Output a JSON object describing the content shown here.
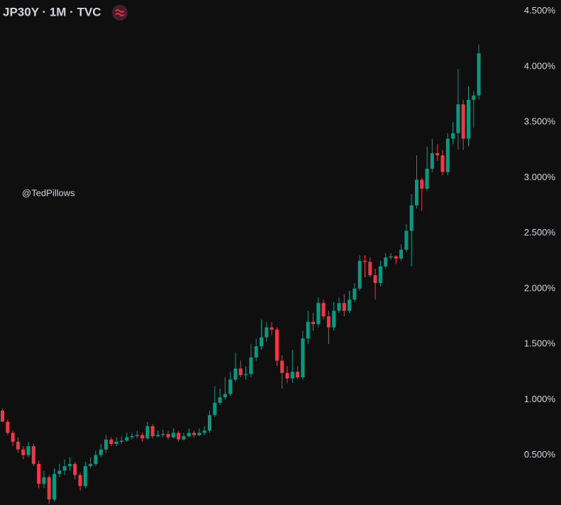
{
  "chart_data": {
    "type": "candlestick",
    "title": "JP30Y · 1M · TVC",
    "annotation": "@TedPillows",
    "up_color": "#089981",
    "down_color": "#f23645",
    "ylim": [
      0.05,
      4.6
    ],
    "yticks": [
      {
        "value": 0.5,
        "label": "0.500%"
      },
      {
        "value": 1.0,
        "label": "1.000%"
      },
      {
        "value": 1.5,
        "label": "1.500%"
      },
      {
        "value": 2.0,
        "label": "2.000%"
      },
      {
        "value": 2.5,
        "label": "2.500%"
      },
      {
        "value": 3.0,
        "label": "3.000%"
      },
      {
        "value": 3.5,
        "label": "3.500%"
      },
      {
        "value": 4.0,
        "label": "4.000%"
      },
      {
        "value": 4.5,
        "label": "4.500%"
      }
    ],
    "open": [
      0.9,
      0.8,
      0.7,
      0.62,
      0.55,
      0.5,
      0.58,
      0.42,
      0.24,
      0.3,
      0.1,
      0.33,
      0.36,
      0.4,
      0.42,
      0.32,
      0.22,
      0.4,
      0.42,
      0.5,
      0.55,
      0.64,
      0.6,
      0.62,
      0.63,
      0.66,
      0.67,
      0.68,
      0.65,
      0.76,
      0.67,
      0.68,
      0.69,
      0.66,
      0.7,
      0.64,
      0.67,
      0.7,
      0.68,
      0.7,
      0.72,
      0.86,
      0.97,
      1.02,
      1.05,
      1.18,
      1.28,
      1.22,
      1.23,
      1.38,
      1.48,
      1.56,
      1.65,
      1.63,
      1.35,
      1.24,
      1.19,
      1.25,
      1.2,
      1.55,
      1.7,
      1.68,
      1.87,
      1.75,
      1.65,
      1.8,
      1.87,
      1.8,
      1.9,
      2.0,
      2.25,
      2.24,
      2.12,
      2.05,
      2.2,
      2.28,
      2.29,
      2.27,
      2.35,
      2.52,
      2.75,
      2.98,
      2.9,
      3.08,
      3.22,
      3.2,
      3.05,
      3.35,
      3.4,
      3.66,
      3.35,
      3.7,
      3.74
    ],
    "high": [
      0.92,
      0.82,
      0.72,
      0.66,
      0.58,
      0.62,
      0.6,
      0.45,
      0.36,
      0.32,
      0.38,
      0.42,
      0.46,
      0.48,
      0.44,
      0.34,
      0.44,
      0.48,
      0.54,
      0.6,
      0.68,
      0.66,
      0.66,
      0.67,
      0.7,
      0.7,
      0.72,
      0.7,
      0.8,
      0.78,
      0.72,
      0.73,
      0.72,
      0.74,
      0.72,
      0.7,
      0.74,
      0.72,
      0.74,
      0.76,
      0.9,
      1.12,
      1.1,
      1.2,
      1.25,
      1.42,
      1.35,
      1.3,
      1.5,
      1.55,
      1.72,
      1.7,
      1.7,
      1.65,
      1.4,
      1.3,
      1.45,
      1.3,
      1.62,
      1.8,
      1.78,
      1.92,
      1.9,
      1.8,
      1.88,
      1.92,
      1.95,
      1.98,
      2.05,
      2.3,
      2.3,
      2.28,
      2.18,
      2.25,
      2.32,
      2.32,
      2.3,
      2.4,
      2.58,
      2.85,
      3.2,
      3.0,
      3.28,
      3.35,
      3.3,
      3.25,
      3.4,
      3.5,
      3.98,
      3.7,
      3.82,
      3.78,
      4.2
    ],
    "low": [
      0.8,
      0.68,
      0.58,
      0.52,
      0.46,
      0.48,
      0.4,
      0.2,
      0.2,
      0.06,
      0.08,
      0.3,
      0.32,
      0.36,
      0.28,
      0.18,
      0.2,
      0.38,
      0.4,
      0.48,
      0.52,
      0.58,
      0.58,
      0.6,
      0.62,
      0.64,
      0.65,
      0.62,
      0.64,
      0.65,
      0.66,
      0.66,
      0.64,
      0.65,
      0.62,
      0.63,
      0.66,
      0.66,
      0.67,
      0.68,
      0.7,
      0.84,
      0.95,
      1.0,
      1.03,
      1.16,
      1.2,
      1.18,
      1.2,
      1.35,
      1.45,
      1.52,
      1.58,
      1.3,
      1.1,
      1.15,
      1.15,
      1.18,
      1.18,
      1.5,
      1.62,
      1.65,
      1.72,
      1.5,
      1.62,
      1.78,
      1.75,
      1.78,
      1.88,
      1.98,
      2.1,
      2.1,
      1.9,
      2.02,
      2.18,
      2.26,
      2.22,
      2.25,
      2.33,
      2.2,
      2.72,
      2.7,
      2.88,
      3.05,
      3.15,
      3.02,
      3.02,
      3.3,
      3.25,
      3.25,
      3.28,
      3.45,
      3.7
    ],
    "close": [
      0.8,
      0.7,
      0.62,
      0.55,
      0.5,
      0.58,
      0.42,
      0.24,
      0.3,
      0.1,
      0.33,
      0.36,
      0.4,
      0.42,
      0.32,
      0.22,
      0.4,
      0.42,
      0.5,
      0.55,
      0.64,
      0.6,
      0.62,
      0.63,
      0.66,
      0.67,
      0.68,
      0.65,
      0.76,
      0.67,
      0.68,
      0.69,
      0.66,
      0.7,
      0.64,
      0.67,
      0.7,
      0.68,
      0.7,
      0.72,
      0.86,
      0.97,
      1.02,
      1.05,
      1.18,
      1.28,
      1.22,
      1.23,
      1.38,
      1.48,
      1.56,
      1.65,
      1.63,
      1.35,
      1.24,
      1.19,
      1.25,
      1.2,
      1.55,
      1.7,
      1.68,
      1.87,
      1.75,
      1.65,
      1.8,
      1.87,
      1.8,
      1.9,
      2.0,
      2.25,
      2.24,
      2.12,
      2.05,
      2.2,
      2.28,
      2.29,
      2.27,
      2.35,
      2.52,
      2.75,
      2.98,
      2.9,
      3.08,
      3.22,
      3.2,
      3.05,
      3.35,
      3.4,
      3.66,
      3.35,
      3.7,
      3.74,
      4.12
    ]
  }
}
